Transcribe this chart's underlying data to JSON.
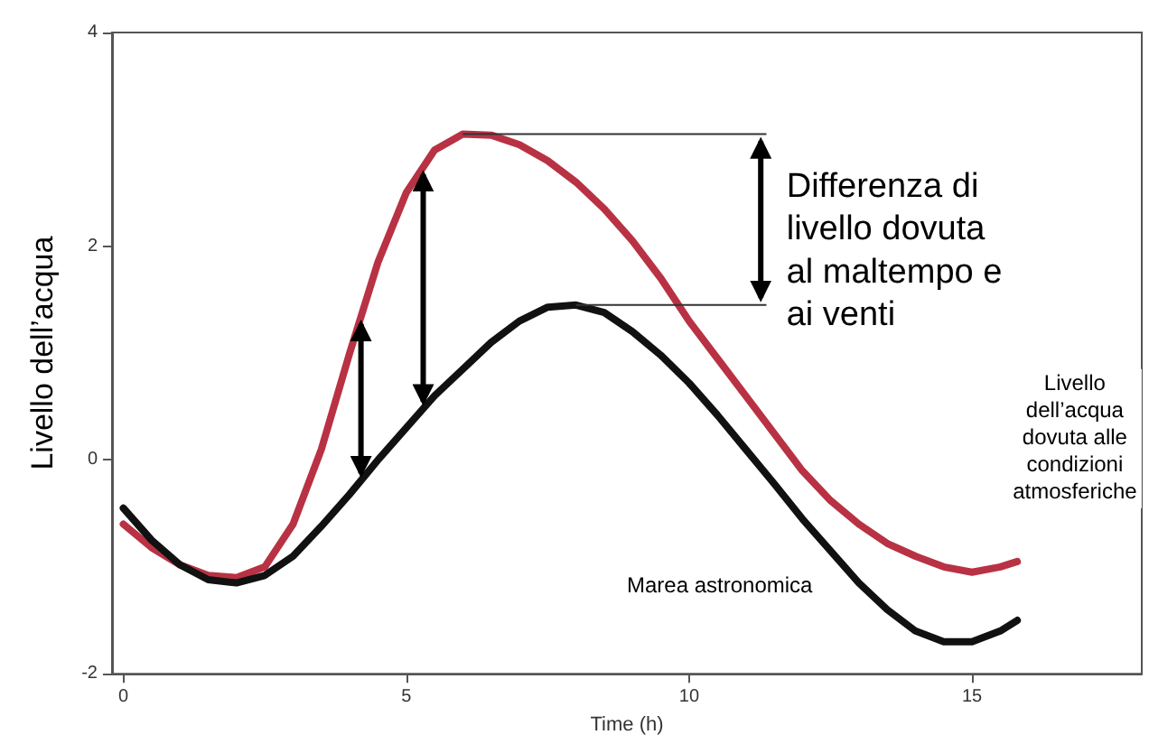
{
  "chart_data": {
    "type": "line",
    "xlabel": "Time (h)",
    "ylabel": "Livello dell’acqua",
    "xlim": [
      -0.2,
      18
    ],
    "xticks": [
      0,
      5,
      10,
      15
    ],
    "ylim": [
      -2,
      4
    ],
    "yticks": [
      -2,
      0,
      2,
      4
    ],
    "grid": false,
    "marker": "none",
    "line_style": "solid",
    "x": [
      0,
      0.5,
      1,
      1.5,
      2,
      2.5,
      3,
      3.5,
      4,
      4.5,
      5,
      5.5,
      6,
      6.5,
      7,
      7.5,
      8,
      8.5,
      9,
      9.5,
      10,
      10.5,
      11,
      11.5,
      12,
      12.5,
      13,
      13.5,
      14,
      14.5,
      15,
      15.5,
      15.8
    ],
    "series": [
      {
        "color": "#b83244",
        "values": [
          -0.6,
          -0.82,
          -0.98,
          -1.08,
          -1.1,
          -1.0,
          -0.6,
          0.1,
          1.0,
          1.85,
          2.5,
          2.9,
          3.05,
          3.04,
          2.95,
          2.8,
          2.6,
          2.35,
          2.05,
          1.7,
          1.3,
          0.95,
          0.6,
          0.25,
          -0.1,
          -0.38,
          -0.6,
          -0.78,
          -0.9,
          -1.0,
          -1.05,
          -1.0,
          -0.95
        ]
      },
      {
        "color": "#111111",
        "values": [
          -0.45,
          -0.75,
          -0.98,
          -1.12,
          -1.15,
          -1.08,
          -0.9,
          -0.62,
          -0.32,
          0.0,
          0.3,
          0.6,
          0.85,
          1.1,
          1.3,
          1.43,
          1.45,
          1.38,
          1.2,
          0.98,
          0.72,
          0.42,
          0.1,
          -0.22,
          -0.55,
          -0.85,
          -1.15,
          -1.4,
          -1.6,
          -1.7,
          -1.7,
          -1.6,
          -1.5
        ]
      }
    ],
    "annotations": [
      {
        "text": "Differenza di\nlivello dovuta\nal maltempo e\nai venti",
        "x": 6,
        "y": 3.05
      },
      "Livello\ndell’acqua\ndovuta alle\ncondizioni\natmosferiche",
      "Marea astronomica"
    ]
  }
}
